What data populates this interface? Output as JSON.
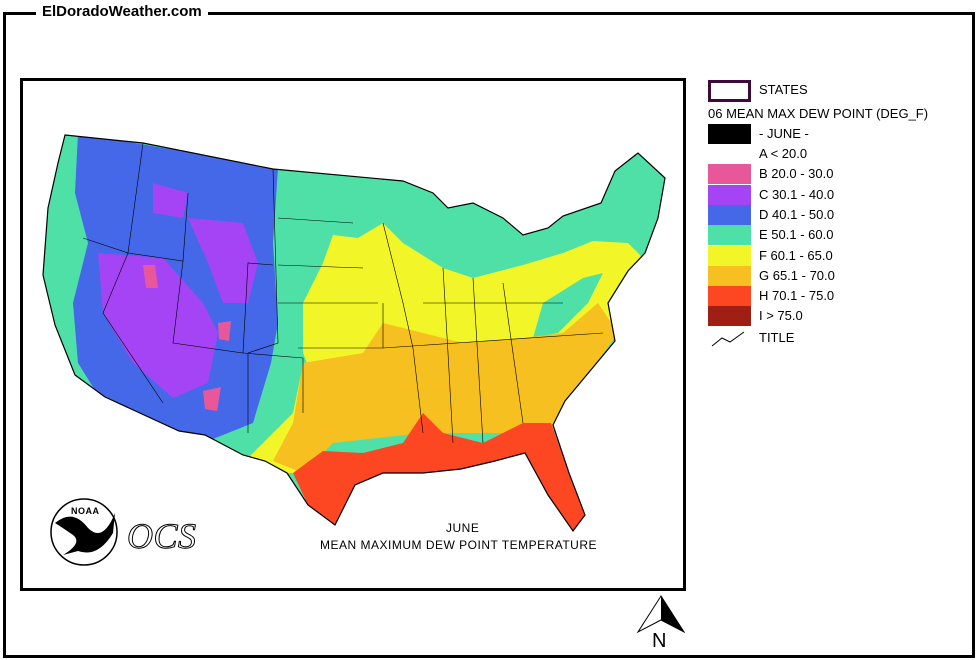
{
  "header": {
    "title": "ElDoradoWeather.com"
  },
  "map": {
    "title_month": "JUNE",
    "title_main": "MEAN MAXIMUM DEW POINT TEMPERATURE",
    "logo_noaa": "NOAA",
    "logo_ocs": "OCS",
    "north_label": "N"
  },
  "legend": {
    "states_label": "STATES",
    "layer_title": "06 MEAN MAX DEW POINT (DEG_F)",
    "month_label": "- JUNE -",
    "title_label": "TITLE",
    "states_border_color": "#3c0a3c",
    "classes": [
      {
        "label": "A < 20.0",
        "color": "#ffffff"
      },
      {
        "label": "B 20.0 - 30.0",
        "color": "#e8579a"
      },
      {
        "label": "C 30.1 - 40.0",
        "color": "#a544f5"
      },
      {
        "label": "D 40.1 - 50.0",
        "color": "#4468e8"
      },
      {
        "label": "E 50.1 - 60.0",
        "color": "#4fe0a8"
      },
      {
        "label": "F 60.1 - 65.0",
        "color": "#f2f527"
      },
      {
        "label": "G 65.1 - 70.0",
        "color": "#f5c020"
      },
      {
        "label": "H 70.1 - 75.0",
        "color": "#fd4622"
      },
      {
        "label": "I > 75.0",
        "color": "#a01f14"
      }
    ]
  }
}
